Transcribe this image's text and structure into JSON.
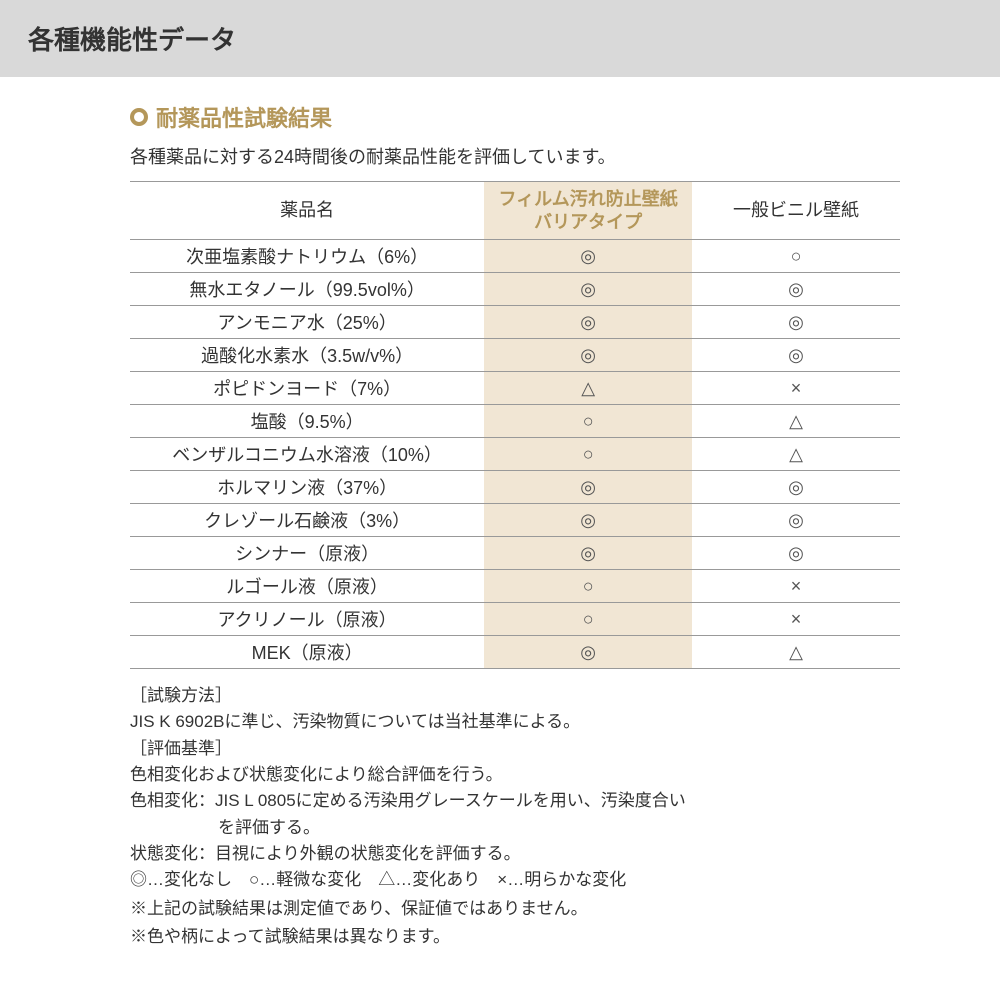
{
  "banner_title": "各種機能性データ",
  "section_title": "耐薬品性試験結果",
  "intro_text": "各種薬品に対する24時間後の耐薬品性能を評価しています。",
  "colors": {
    "banner_bg": "#d9d9d9",
    "accent": "#b4975a",
    "barrier_bg": "#f1e6d4",
    "text": "#333333",
    "border": "#999999",
    "page_bg": "#ffffff"
  },
  "table": {
    "columns": {
      "chem": "薬品名",
      "barrier_line1": "フィルム汚れ防止壁紙",
      "barrier_line2": "バリアタイプ",
      "general": "一般ビニル壁紙"
    },
    "symbol_map": {
      "double": "◎",
      "single": "○",
      "triangle": "△",
      "cross": "×"
    },
    "rows": [
      {
        "chem": "次亜塩素酸ナトリウム（6%）",
        "barrier": "double",
        "general": "single"
      },
      {
        "chem": "無水エタノール（99.5vol%）",
        "barrier": "double",
        "general": "double"
      },
      {
        "chem": "アンモニア水（25%）",
        "barrier": "double",
        "general": "double"
      },
      {
        "chem": "過酸化水素水（3.5w/v%）",
        "barrier": "double",
        "general": "double"
      },
      {
        "chem": "ポピドンヨード（7%）",
        "barrier": "triangle",
        "general": "cross"
      },
      {
        "chem": "塩酸（9.5%）",
        "barrier": "single",
        "general": "triangle"
      },
      {
        "chem": "ベンザルコニウム水溶液（10%）",
        "barrier": "single",
        "general": "triangle"
      },
      {
        "chem": "ホルマリン液（37%）",
        "barrier": "double",
        "general": "double"
      },
      {
        "chem": "クレゾール石鹸液（3%）",
        "barrier": "double",
        "general": "double"
      },
      {
        "chem": "シンナー（原液）",
        "barrier": "double",
        "general": "double"
      },
      {
        "chem": "ルゴール液（原液）",
        "barrier": "single",
        "general": "cross"
      },
      {
        "chem": "アクリノール（原液）",
        "barrier": "single",
        "general": "cross"
      },
      {
        "chem": "MEK（原液）",
        "barrier": "double",
        "general": "triangle"
      }
    ]
  },
  "notes": {
    "method_label": "［試験方法］",
    "method_text": "JIS K 6902Bに準じ、汚染物質については当社基準による。",
    "criteria_label": "［評価基準］",
    "criteria_text1": "色相変化および状態変化により総合評価を行う。",
    "criteria_text2a": "色相変化：JIS L 0805に定める汚染用グレースケールを用い、汚染度合い",
    "criteria_text2b": "を評価する。",
    "criteria_text3": "状態変化：目視により外観の状態変化を評価する。",
    "legend": "◎…変化なし　○…軽微な変化　△…変化あり　×…明らかな変化",
    "disclaimer1": "※上記の試験結果は測定値であり、保証値ではありません。",
    "disclaimer2": "※色や柄によって試験結果は異なります。"
  }
}
